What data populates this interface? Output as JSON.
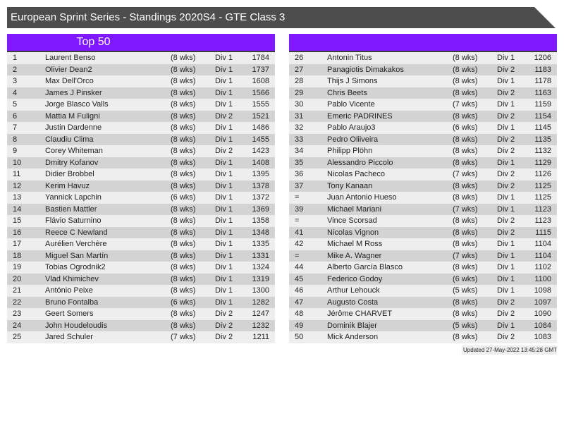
{
  "title": "European Sprint Series - Standings 2020S4 - GTE Class 3",
  "left_panel": {
    "header": "Top 50"
  },
  "right_panel": {
    "header": ""
  },
  "colors": {
    "header_bar": "#4d4d4d",
    "accent_purple": "#7f17ff",
    "row_light": "#eeeeee",
    "row_dark": "#d3d3d3"
  },
  "columns": [
    "rank",
    "name",
    "weeks",
    "division",
    "points"
  ],
  "standings_left": [
    {
      "rank": "1",
      "name": "Laurent Benso",
      "weeks": "(8 wks)",
      "div": "Div 1",
      "points": "1784"
    },
    {
      "rank": "2",
      "name": "Olivier Dean2",
      "weeks": "(8 wks)",
      "div": "Div 1",
      "points": "1737"
    },
    {
      "rank": "3",
      "name": "Max Dell'Orco",
      "weeks": "(8 wks)",
      "div": "Div 1",
      "points": "1608"
    },
    {
      "rank": "4",
      "name": "James J Pinsker",
      "weeks": "(8 wks)",
      "div": "Div 1",
      "points": "1566"
    },
    {
      "rank": "5",
      "name": "Jorge Blasco Valls",
      "weeks": "(8 wks)",
      "div": "Div 1",
      "points": "1555"
    },
    {
      "rank": "6",
      "name": "Mattia M Fuligni",
      "weeks": "(8 wks)",
      "div": "Div 2",
      "points": "1521"
    },
    {
      "rank": "7",
      "name": "Justin Dardenne",
      "weeks": "(8 wks)",
      "div": "Div 1",
      "points": "1486"
    },
    {
      "rank": "8",
      "name": "Claudiu Clima",
      "weeks": "(8 wks)",
      "div": "Div 1",
      "points": "1455"
    },
    {
      "rank": "9",
      "name": "Corey Whiteman",
      "weeks": "(8 wks)",
      "div": "Div 2",
      "points": "1423"
    },
    {
      "rank": "10",
      "name": "Dmitry Kofanov",
      "weeks": "(8 wks)",
      "div": "Div 1",
      "points": "1408"
    },
    {
      "rank": "11",
      "name": "Didier Brobbel",
      "weeks": "(8 wks)",
      "div": "Div 1",
      "points": "1395"
    },
    {
      "rank": "12",
      "name": "Kerim Havuz",
      "weeks": "(8 wks)",
      "div": "Div 1",
      "points": "1378"
    },
    {
      "rank": "13",
      "name": "Yannick Lapchin",
      "weeks": "(6 wks)",
      "div": "Div 1",
      "points": "1372"
    },
    {
      "rank": "14",
      "name": "Bastien Mattler",
      "weeks": "(8 wks)",
      "div": "Div 1",
      "points": "1369"
    },
    {
      "rank": "15",
      "name": "Flávio Saturnino",
      "weeks": "(8 wks)",
      "div": "Div 1",
      "points": "1358"
    },
    {
      "rank": "16",
      "name": "Reece C Newland",
      "weeks": "(8 wks)",
      "div": "Div 1",
      "points": "1348"
    },
    {
      "rank": "17",
      "name": "Aurélien Verchère",
      "weeks": "(8 wks)",
      "div": "Div 1",
      "points": "1335"
    },
    {
      "rank": "18",
      "name": "Miguel San Martín",
      "weeks": "(8 wks)",
      "div": "Div 1",
      "points": "1331"
    },
    {
      "rank": "19",
      "name": "Tobias Ogrodnik2",
      "weeks": "(8 wks)",
      "div": "Div 1",
      "points": "1324"
    },
    {
      "rank": "20",
      "name": "Vlad Khimichev",
      "weeks": "(8 wks)",
      "div": "Div 1",
      "points": "1319"
    },
    {
      "rank": "21",
      "name": "António Peixe",
      "weeks": "(8 wks)",
      "div": "Div 1",
      "points": "1300"
    },
    {
      "rank": "22",
      "name": "Bruno Fontalba",
      "weeks": "(6 wks)",
      "div": "Div 1",
      "points": "1282"
    },
    {
      "rank": "23",
      "name": "Geert Somers",
      "weeks": "(8 wks)",
      "div": "Div 2",
      "points": "1247"
    },
    {
      "rank": "24",
      "name": "John Houdeloudis",
      "weeks": "(8 wks)",
      "div": "Div 2",
      "points": "1232"
    },
    {
      "rank": "25",
      "name": "Jared Schuler",
      "weeks": "(7 wks)",
      "div": "Div 2",
      "points": "1211"
    }
  ],
  "standings_right": [
    {
      "rank": "26",
      "name": "Antonin Titus",
      "weeks": "(8 wks)",
      "div": "Div 1",
      "points": "1206"
    },
    {
      "rank": "27",
      "name": "Panagiotis Dimakakos",
      "weeks": "(8 wks)",
      "div": "Div 2",
      "points": "1183"
    },
    {
      "rank": "28",
      "name": "Thijs J Simons",
      "weeks": "(8 wks)",
      "div": "Div 1",
      "points": "1178"
    },
    {
      "rank": "29",
      "name": "Chris Beets",
      "weeks": "(8 wks)",
      "div": "Div 2",
      "points": "1163"
    },
    {
      "rank": "30",
      "name": "Pablo Vicente",
      "weeks": "(7 wks)",
      "div": "Div 1",
      "points": "1159"
    },
    {
      "rank": "31",
      "name": "Emeric PADRINES",
      "weeks": "(8 wks)",
      "div": "Div 2",
      "points": "1154"
    },
    {
      "rank": "32",
      "name": "Pablo Araujo3",
      "weeks": "(6 wks)",
      "div": "Div 1",
      "points": "1145"
    },
    {
      "rank": "33",
      "name": "Pedro Oliiveira",
      "weeks": "(8 wks)",
      "div": "Div 2",
      "points": "1135"
    },
    {
      "rank": "34",
      "name": "Philipp Plöhn",
      "weeks": "(8 wks)",
      "div": "Div 2",
      "points": "1132"
    },
    {
      "rank": "35",
      "name": "Alessandro Piccolo",
      "weeks": "(8 wks)",
      "div": "Div 1",
      "points": "1129"
    },
    {
      "rank": "36",
      "name": "Nicolas Pacheco",
      "weeks": "(7 wks)",
      "div": "Div 2",
      "points": "1126"
    },
    {
      "rank": "37",
      "name": "Tony Kanaan",
      "weeks": "(8 wks)",
      "div": "Div 2",
      "points": "1125"
    },
    {
      "rank": "=",
      "name": "Juan Antonio Hueso",
      "weeks": "(8 wks)",
      "div": "Div 1",
      "points": "1125"
    },
    {
      "rank": "39",
      "name": "Michael Mariani",
      "weeks": "(7 wks)",
      "div": "Div 1",
      "points": "1123"
    },
    {
      "rank": "=",
      "name": "Vince Scorsad",
      "weeks": "(8 wks)",
      "div": "Div 2",
      "points": "1123"
    },
    {
      "rank": "41",
      "name": "Nicolas Vignon",
      "weeks": "(8 wks)",
      "div": "Div 2",
      "points": "1115"
    },
    {
      "rank": "42",
      "name": "Michael M Ross",
      "weeks": "(8 wks)",
      "div": "Div 1",
      "points": "1104"
    },
    {
      "rank": "=",
      "name": "Mike A. Wagner",
      "weeks": "(7 wks)",
      "div": "Div 1",
      "points": "1104"
    },
    {
      "rank": "44",
      "name": "Alberto García Blasco",
      "weeks": "(8 wks)",
      "div": "Div 1",
      "points": "1102"
    },
    {
      "rank": "45",
      "name": "Federico Godoy",
      "weeks": "(6 wks)",
      "div": "Div 1",
      "points": "1100"
    },
    {
      "rank": "46",
      "name": "Arthur Lehouck",
      "weeks": "(5 wks)",
      "div": "Div 1",
      "points": "1098"
    },
    {
      "rank": "47",
      "name": "Augusto Costa",
      "weeks": "(8 wks)",
      "div": "Div 2",
      "points": "1097"
    },
    {
      "rank": "48",
      "name": "Jérôme CHARVET",
      "weeks": "(8 wks)",
      "div": "Div 2",
      "points": "1090"
    },
    {
      "rank": "49",
      "name": "Dominik Blajer",
      "weeks": "(5 wks)",
      "div": "Div 1",
      "points": "1084"
    },
    {
      "rank": "50",
      "name": "Mick Anderson",
      "weeks": "(8 wks)",
      "div": "Div 2",
      "points": "1083"
    }
  ],
  "updated": "Updated 27-May-2022 13:45:28 GMT"
}
